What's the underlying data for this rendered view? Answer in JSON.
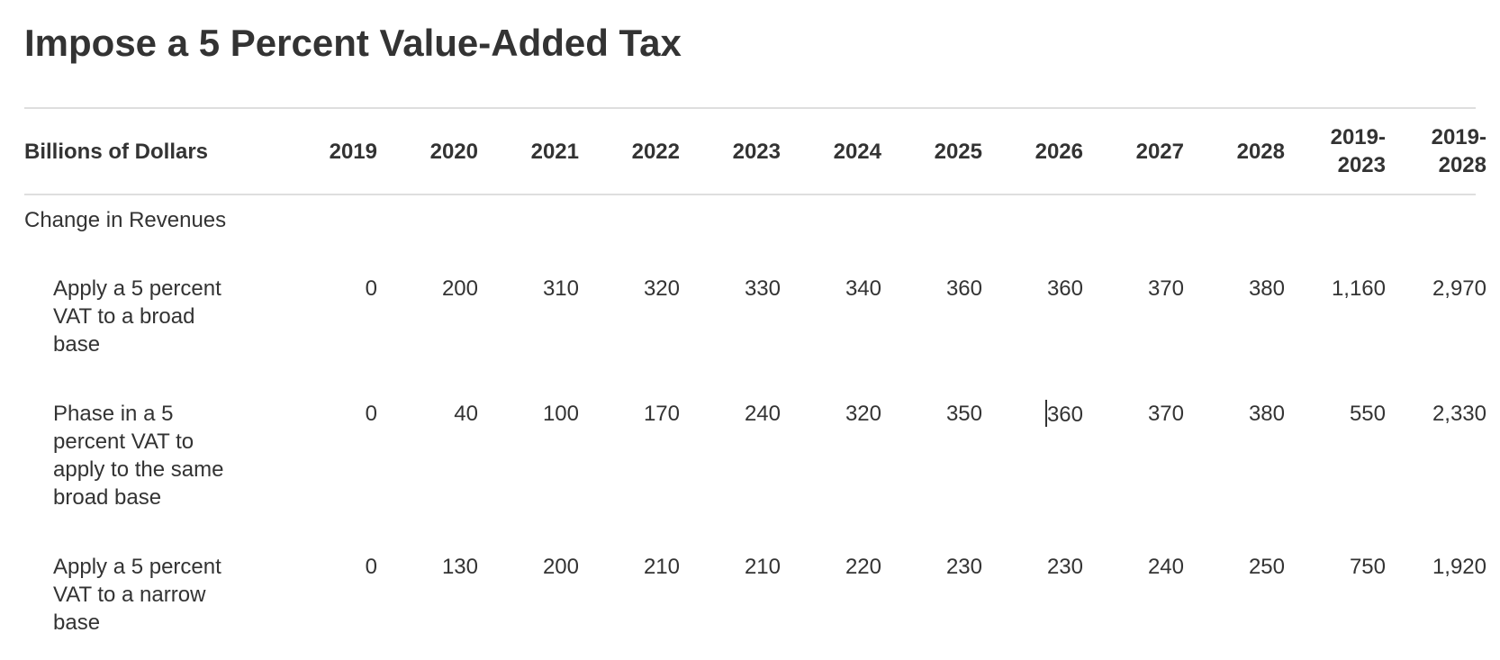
{
  "title": "Impose a 5 Percent Value-Added Tax",
  "table": {
    "header": {
      "label": "Billions of Dollars",
      "years": [
        "2019",
        "2020",
        "2021",
        "2022",
        "2023",
        "2024",
        "2025",
        "2026",
        "2027",
        "2028"
      ],
      "sum1": [
        "2019-",
        "2023"
      ],
      "sum2": [
        "2019-",
        "2028"
      ]
    },
    "section_label": "Change in Revenues",
    "rows": [
      {
        "label": "Apply a 5 percent VAT to a broad base",
        "values": [
          "0",
          "200",
          "310",
          "320",
          "330",
          "340",
          "360",
          "360",
          "370",
          "380",
          "1,160",
          "2,970"
        ]
      },
      {
        "label": "Phase in a 5 percent VAT to apply to the same broad base",
        "values": [
          "0",
          "40",
          "100",
          "170",
          "240",
          "320",
          "350",
          "360",
          "370",
          "380",
          "550",
          "2,330"
        ]
      },
      {
        "label": "Apply a 5 percent VAT to a narrow base",
        "values": [
          "0",
          "130",
          "200",
          "210",
          "210",
          "220",
          "230",
          "230",
          "240",
          "250",
          "750",
          "1,920"
        ]
      }
    ]
  }
}
